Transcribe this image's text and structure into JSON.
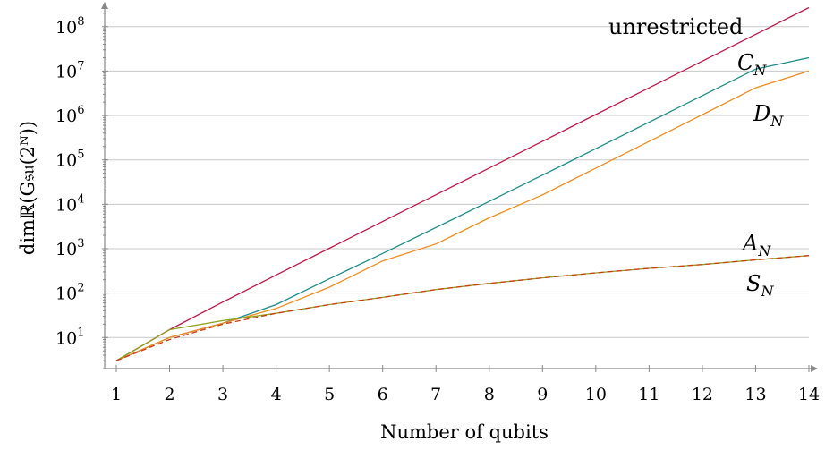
{
  "chart_data": {
    "type": "line",
    "xlabel": "Number of qubits",
    "ylabel": "dimℝ(G𝔰𝔲(2ᴺ))",
    "xlim": [
      1,
      14
    ],
    "ylim_log10": [
      0.3,
      8.6
    ],
    "yscale": "log",
    "grid": "horizontal major",
    "x_ticks": [
      "1",
      "2",
      "3",
      "4",
      "5",
      "6",
      "7",
      "8",
      "9",
      "10",
      "11",
      "12",
      "13",
      "14"
    ],
    "y_ticks": [
      {
        "base": "10",
        "exp": "1",
        "log": 1
      },
      {
        "base": "10",
        "exp": "2",
        "log": 2
      },
      {
        "base": "10",
        "exp": "3",
        "log": 3
      },
      {
        "base": "10",
        "exp": "4",
        "log": 4
      },
      {
        "base": "10",
        "exp": "5",
        "log": 5
      },
      {
        "base": "10",
        "exp": "6",
        "log": 6
      },
      {
        "base": "10",
        "exp": "7",
        "log": 7
      },
      {
        "base": "10",
        "exp": "8",
        "log": 8
      }
    ],
    "series": [
      {
        "name": "unrestricted",
        "color": "#c0174a",
        "dash": "",
        "x": [
          1,
          2,
          3,
          4,
          5,
          6,
          7,
          8,
          9,
          10,
          11,
          12,
          13,
          14
        ],
        "y": [
          3,
          15,
          63,
          255,
          1023,
          4095,
          16383,
          65535,
          262143,
          1048575,
          4194303,
          16777215,
          67108863,
          268435455
        ]
      },
      {
        "name": "C_N",
        "color": "#1a8c8c",
        "dash": "",
        "x": [
          1,
          2,
          3,
          4,
          5,
          6,
          7,
          8,
          9,
          10,
          11,
          12,
          13,
          14
        ],
        "y": [
          3,
          10,
          21,
          55,
          210,
          780,
          3003,
          11628,
          45474,
          178365,
          704880,
          2790996,
          11075616,
          20000000
        ]
      },
      {
        "name": "D_N",
        "color": "#f28c1a",
        "dash": "",
        "x": [
          1,
          2,
          3,
          4,
          5,
          6,
          7,
          8,
          9,
          10,
          11,
          12,
          13,
          14
        ],
        "y": [
          3,
          10,
          21,
          45,
          136,
          528,
          1275,
          4950,
          16290,
          65280,
          260000,
          1040000,
          4200000,
          10000000
        ]
      },
      {
        "name": "A_N",
        "color": "#8ca01a",
        "dash": "",
        "x": [
          1,
          2,
          3,
          4,
          5,
          6,
          7,
          8,
          9,
          10,
          11,
          12,
          13,
          14
        ],
        "y": [
          3,
          15,
          24,
          35,
          55,
          80,
          120,
          165,
          220,
          285,
          360,
          440,
          560,
          700
        ]
      },
      {
        "name": "S_N",
        "color": "#d03a1a",
        "dash": "6 4",
        "x": [
          1,
          2,
          3,
          4,
          5,
          6,
          7,
          8,
          9,
          10,
          11,
          12,
          13,
          14
        ],
        "y": [
          3,
          9,
          20,
          35,
          55,
          80,
          120,
          165,
          220,
          285,
          360,
          440,
          560,
          700
        ]
      }
    ],
    "labels": {
      "unrestricted": "unrestricted",
      "C_main": "C",
      "C_sub": "N",
      "D_main": "D",
      "D_sub": "N",
      "A_main": "A",
      "A_sub": "N",
      "S_main": "S",
      "S_sub": "N"
    }
  }
}
